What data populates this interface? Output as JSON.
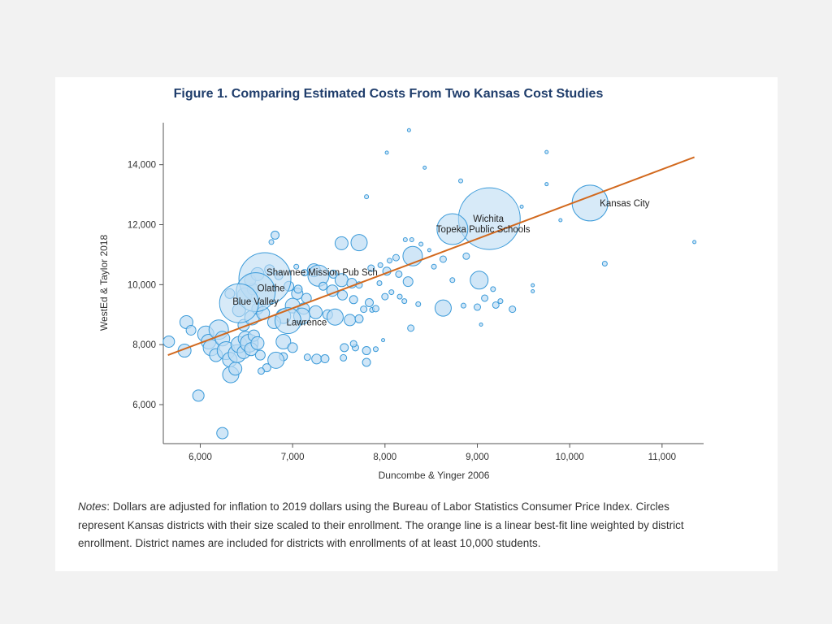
{
  "chart_data": {
    "type": "scatter",
    "title": "Figure 1. Comparing Estimated Costs From Two Kansas Cost Studies",
    "xlabel": "Duncombe & Yinger 2006",
    "ylabel": "WestEd & Taylor 2018",
    "xlim": [
      5600,
      11450
    ],
    "ylim": [
      4700,
      15400
    ],
    "xticks": [
      6000,
      7000,
      8000,
      9000,
      10000,
      11000
    ],
    "xtick_labels": [
      "6,000",
      "7,000",
      "8,000",
      "9,000",
      "10,000",
      "11,000"
    ],
    "yticks": [
      6000,
      8000,
      10000,
      12000,
      14000
    ],
    "ytick_labels": [
      "6,000",
      "8,000",
      "10,000",
      "12,000",
      "14,000"
    ],
    "grid": false,
    "legend": "none",
    "colors": {
      "bubble_fill": "#bcdcf4",
      "bubble_stroke": "#3a9ad9",
      "fit_line": "#d2691e",
      "title": "#1f3d6b"
    },
    "fit_line": {
      "x": [
        5650,
        11350
      ],
      "y": [
        7650,
        14250
      ]
    },
    "labeled_points": [
      {
        "name": "Kansas City",
        "x": 10220,
        "y": 12720,
        "r": 22
      },
      {
        "name": "Wichita",
        "x": 9130,
        "y": 12200,
        "r": 38
      },
      {
        "name": "Topeka Public Schools",
        "x": 8730,
        "y": 11850,
        "r": 19
      },
      {
        "name": "Shawnee Mission Pub Sch",
        "x": 6700,
        "y": 10200,
        "r": 32
      },
      {
        "name": "Olathe",
        "x": 6600,
        "y": 9750,
        "r": 24
      },
      {
        "name": "Blue Valley",
        "x": 6420,
        "y": 9380,
        "r": 24
      },
      {
        "name": "Lawrence",
        "x": 6950,
        "y": 8800,
        "r": 16
      }
    ],
    "points": [
      [
        8260,
        15150,
        2
      ],
      [
        8020,
        14400,
        2
      ],
      [
        8430,
        13900,
        2
      ],
      [
        9750,
        14420,
        2
      ],
      [
        9750,
        13350,
        2
      ],
      [
        10380,
        10700,
        3
      ],
      [
        11350,
        11420,
        2
      ],
      [
        9600,
        9980,
        2
      ],
      [
        9600,
        9780,
        2
      ],
      [
        7800,
        12930,
        2.5
      ],
      [
        8820,
        13460,
        2.5
      ],
      [
        9480,
        12600,
        2
      ],
      [
        9900,
        12150,
        2
      ],
      [
        8220,
        11500,
        2.5
      ],
      [
        8290,
        11500,
        2.5
      ],
      [
        8390,
        11350,
        2.5
      ],
      [
        8480,
        11150,
        2
      ],
      [
        8300,
        10950,
        12
      ],
      [
        8120,
        10900,
        4
      ],
      [
        8050,
        10800,
        3
      ],
      [
        8630,
        10850,
        4
      ],
      [
        8880,
        10950,
        4
      ],
      [
        8530,
        10600,
        3
      ],
      [
        8730,
        10150,
        3
      ],
      [
        9020,
        10150,
        11
      ],
      [
        9170,
        9850,
        3
      ],
      [
        9080,
        9550,
        4
      ],
      [
        9250,
        9450,
        3
      ],
      [
        9200,
        9320,
        4
      ],
      [
        9380,
        9180,
        4
      ],
      [
        9000,
        9250,
        4
      ],
      [
        8630,
        9220,
        10
      ],
      [
        8850,
        9300,
        3
      ],
      [
        9040,
        8670,
        2
      ],
      [
        8280,
        8550,
        4
      ],
      [
        7980,
        8150,
        2
      ],
      [
        7900,
        7850,
        3
      ],
      [
        6810,
        11650,
        5
      ],
      [
        6770,
        11420,
        3
      ],
      [
        7530,
        11380,
        8
      ],
      [
        7720,
        11400,
        10
      ],
      [
        7040,
        10600,
        3
      ],
      [
        7130,
        10400,
        4
      ],
      [
        7230,
        10480,
        8
      ],
      [
        7280,
        10300,
        13
      ],
      [
        7440,
        10350,
        5
      ],
      [
        7530,
        10150,
        8
      ],
      [
        7640,
        10050,
        6
      ],
      [
        7720,
        9990,
        4
      ],
      [
        7330,
        9950,
        5
      ],
      [
        7430,
        9800,
        7
      ],
      [
        7540,
        9650,
        6
      ],
      [
        7660,
        9500,
        5
      ],
      [
        7830,
        9400,
        5
      ],
      [
        7050,
        9700,
        7
      ],
      [
        7150,
        9550,
        6
      ],
      [
        7000,
        9300,
        9
      ],
      [
        7120,
        9200,
        7
      ],
      [
        7250,
        9080,
        8
      ],
      [
        7380,
        9000,
        6
      ],
      [
        7460,
        8920,
        10
      ],
      [
        7620,
        8820,
        7
      ],
      [
        7720,
        8860,
        5
      ],
      [
        7100,
        8950,
        10
      ],
      [
        6900,
        8950,
        9
      ],
      [
        6800,
        8750,
        8
      ],
      [
        6900,
        8100,
        9
      ],
      [
        7000,
        7900,
        6
      ],
      [
        6900,
        7600,
        5
      ],
      [
        6820,
        7480,
        10
      ],
      [
        6720,
        7230,
        5
      ],
      [
        6660,
        7120,
        4
      ],
      [
        7160,
        7580,
        4
      ],
      [
        7260,
        7520,
        6
      ],
      [
        7350,
        7530,
        5
      ],
      [
        7560,
        7900,
        5
      ],
      [
        7680,
        7900,
        4
      ],
      [
        7800,
        7800,
        5
      ],
      [
        7660,
        8030,
        4
      ],
      [
        7800,
        7410,
        5
      ],
      [
        7550,
        7560,
        4
      ],
      [
        7770,
        9180,
        4
      ],
      [
        7860,
        9160,
        3
      ],
      [
        7940,
        10050,
        3
      ],
      [
        7850,
        10550,
        4
      ],
      [
        7950,
        10650,
        3
      ],
      [
        8020,
        10450,
        5
      ],
      [
        8150,
        10350,
        4
      ],
      [
        8250,
        10100,
        6
      ],
      [
        8070,
        9750,
        3
      ],
      [
        8160,
        9600,
        3
      ],
      [
        8210,
        9450,
        3
      ],
      [
        8360,
        9350,
        3
      ],
      [
        8000,
        9600,
        4
      ],
      [
        7900,
        9200,
        4
      ],
      [
        5660,
        8100,
        7
      ],
      [
        5830,
        7800,
        8
      ],
      [
        5850,
        8750,
        8
      ],
      [
        5900,
        8480,
        6
      ],
      [
        5980,
        6300,
        7
      ],
      [
        6060,
        8350,
        10
      ],
      [
        6090,
        8100,
        9
      ],
      [
        6120,
        7900,
        10
      ],
      [
        6170,
        7650,
        8
      ],
      [
        6200,
        8500,
        12
      ],
      [
        6240,
        8200,
        9
      ],
      [
        6280,
        7800,
        11
      ],
      [
        6320,
        7500,
        9
      ],
      [
        6330,
        7000,
        10
      ],
      [
        6380,
        7200,
        8
      ],
      [
        6400,
        7700,
        11
      ],
      [
        6420,
        8000,
        10
      ],
      [
        6470,
        7750,
        8
      ],
      [
        6490,
        8200,
        9
      ],
      [
        6530,
        8050,
        11
      ],
      [
        6550,
        7850,
        8
      ],
      [
        6580,
        8300,
        7
      ],
      [
        6620,
        8050,
        8
      ],
      [
        6650,
        7650,
        6
      ],
      [
        6470,
        8650,
        7
      ],
      [
        6560,
        8900,
        9
      ],
      [
        6620,
        9200,
        7
      ],
      [
        6680,
        9050,
        8
      ],
      [
        6480,
        9650,
        9
      ],
      [
        6570,
        9850,
        7
      ],
      [
        6420,
        9150,
        8
      ],
      [
        6320,
        9700,
        6
      ],
      [
        6240,
        5050,
        7
      ],
      [
        6540,
        10150,
        7
      ],
      [
        6620,
        10350,
        8
      ],
      [
        6750,
        10500,
        6
      ],
      [
        6850,
        10300,
        5
      ],
      [
        6960,
        9950,
        6
      ],
      [
        7060,
        9850,
        5
      ]
    ]
  },
  "notes": {
    "lead": "Notes",
    "text": ": Dollars are adjusted for inflation to 2019 dollars using the Bureau of Labor Statistics Consumer Price Index. Circles represent Kansas districts with their size scaled to their enrollment. The orange line is a linear best-fit line weighted by district enrollment. District names are included for districts with enrollments of at least 10,000 students."
  }
}
